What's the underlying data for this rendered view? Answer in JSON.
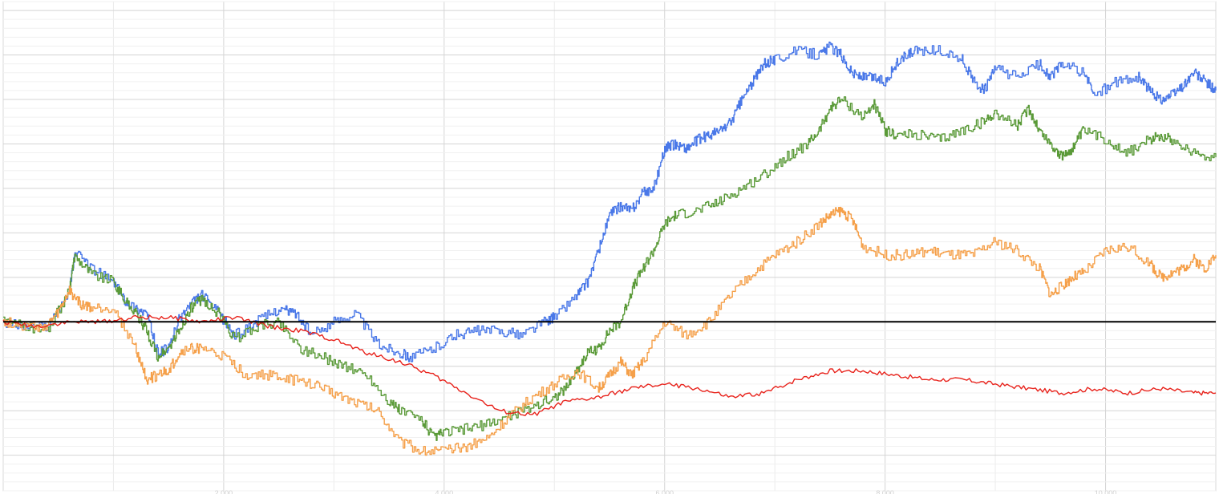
{
  "chart_data": {
    "type": "line",
    "title": "",
    "xlabel": "",
    "ylabel": "",
    "xlim": [
      0,
      11000
    ],
    "ylim": [
      -1.9,
      3.6
    ],
    "grid": true,
    "legend": "none",
    "zero_line_color": "#000000",
    "x_ticks": [
      2000,
      4000,
      6000,
      8000,
      10000
    ],
    "x_tick_labels": [
      "2,000",
      "4,000",
      "6,000",
      "8,000",
      "10,000"
    ],
    "series": [
      {
        "color": "#4a78e8",
        "style": "step",
        "x": [
          0,
          200,
          400,
          600,
          650,
          800,
          1000,
          1100,
          1200,
          1300,
          1400,
          1500,
          1600,
          1700,
          1800,
          1950,
          2100,
          2300,
          2500,
          2650,
          2800,
          3000,
          3200,
          3400,
          3600,
          3700,
          3900,
          4100,
          4300,
          4500,
          4700,
          4900,
          5000,
          5200,
          5300,
          5400,
          5500,
          5600,
          5700,
          5800,
          5900,
          6000,
          6100,
          6200,
          6300,
          6400,
          6500,
          6600,
          6700,
          6800,
          6900,
          7000,
          7200,
          7400,
          7500,
          7600,
          7700,
          7800,
          7900,
          8000,
          8100,
          8200,
          8300,
          8500,
          8700,
          8800,
          8900,
          9000,
          9200,
          9400,
          9500,
          9600,
          9800,
          9900,
          10100,
          10300,
          10400,
          10500,
          10600,
          10700,
          10800,
          10900,
          11000
        ],
        "y": [
          0.0,
          -0.05,
          -0.05,
          0.35,
          0.78,
          0.6,
          0.45,
          0.25,
          0.15,
          0.1,
          -0.35,
          -0.3,
          0.05,
          0.2,
          0.3,
          0.1,
          -0.15,
          0.0,
          0.15,
          0.1,
          -0.15,
          0.0,
          0.1,
          -0.25,
          -0.35,
          -0.4,
          -0.3,
          -0.15,
          -0.1,
          -0.1,
          -0.15,
          0.0,
          0.05,
          0.3,
          0.45,
          0.8,
          1.2,
          1.3,
          1.25,
          1.45,
          1.5,
          1.95,
          2.0,
          1.95,
          2.05,
          2.1,
          2.15,
          2.25,
          2.5,
          2.7,
          2.9,
          2.95,
          3.05,
          3.0,
          3.1,
          3.0,
          2.8,
          2.75,
          2.75,
          2.7,
          2.9,
          3.0,
          3.05,
          3.05,
          2.95,
          2.7,
          2.6,
          2.85,
          2.75,
          2.9,
          2.75,
          2.9,
          2.8,
          2.55,
          2.7,
          2.75,
          2.6,
          2.5,
          2.55,
          2.65,
          2.8,
          2.7,
          2.6
        ]
      },
      {
        "color": "#5a9a38",
        "style": "step",
        "x": [
          0,
          200,
          400,
          600,
          650,
          800,
          1000,
          1100,
          1200,
          1300,
          1400,
          1500,
          1600,
          1700,
          1800,
          1950,
          2100,
          2300,
          2500,
          2700,
          2900,
          3100,
          3300,
          3500,
          3600,
          3800,
          3900,
          4000,
          4200,
          4400,
          4600,
          4800,
          5000,
          5100,
          5200,
          5300,
          5400,
          5500,
          5600,
          5700,
          5800,
          5900,
          6000,
          6100,
          6300,
          6500,
          6700,
          6900,
          7100,
          7300,
          7400,
          7500,
          7600,
          7800,
          7900,
          8000,
          8100,
          8300,
          8500,
          8700,
          8900,
          9000,
          9200,
          9300,
          9400,
          9500,
          9600,
          9700,
          9800,
          10000,
          10200,
          10400,
          10500,
          10600,
          10800,
          11000
        ],
        "y": [
          0.0,
          -0.05,
          -0.1,
          0.35,
          0.75,
          0.55,
          0.45,
          0.25,
          0.1,
          -0.1,
          -0.4,
          -0.3,
          -0.1,
          0.15,
          0.25,
          0.1,
          -0.2,
          -0.05,
          0.0,
          -0.3,
          -0.4,
          -0.5,
          -0.6,
          -0.9,
          -1.0,
          -1.1,
          -1.3,
          -1.25,
          -1.2,
          -1.15,
          -1.05,
          -0.95,
          -0.85,
          -0.75,
          -0.55,
          -0.35,
          -0.3,
          -0.1,
          0.0,
          0.35,
          0.6,
          0.8,
          1.1,
          1.2,
          1.25,
          1.35,
          1.5,
          1.65,
          1.85,
          2.0,
          2.15,
          2.4,
          2.5,
          2.3,
          2.45,
          2.15,
          2.1,
          2.1,
          2.05,
          2.15,
          2.25,
          2.35,
          2.2,
          2.4,
          2.15,
          2.0,
          1.85,
          1.95,
          2.15,
          2.05,
          1.9,
          2.05,
          2.1,
          2.05,
          1.9,
          1.85
        ]
      },
      {
        "color": "#f5a04a",
        "style": "step",
        "x": [
          0,
          200,
          400,
          500,
          600,
          700,
          800,
          1000,
          1200,
          1300,
          1400,
          1500,
          1600,
          1700,
          1800,
          2000,
          2200,
          2400,
          2600,
          2800,
          3000,
          3200,
          3400,
          3600,
          3800,
          4000,
          4200,
          4400,
          4600,
          4800,
          5000,
          5200,
          5400,
          5500,
          5600,
          5700,
          5800,
          6000,
          6200,
          6400,
          6600,
          6800,
          7000,
          7200,
          7400,
          7500,
          7600,
          7700,
          7800,
          8000,
          8200,
          8400,
          8600,
          8800,
          9000,
          9200,
          9400,
          9500,
          9600,
          9700,
          9800,
          10000,
          10200,
          10400,
          10500,
          10600,
          10700,
          10800,
          10900,
          11000
        ],
        "y": [
          0.0,
          -0.05,
          -0.05,
          0.1,
          0.35,
          0.2,
          0.15,
          0.15,
          -0.3,
          -0.65,
          -0.6,
          -0.55,
          -0.35,
          -0.3,
          -0.3,
          -0.4,
          -0.6,
          -0.6,
          -0.65,
          -0.7,
          -0.8,
          -0.9,
          -1.0,
          -1.35,
          -1.45,
          -1.45,
          -1.4,
          -1.3,
          -1.05,
          -0.85,
          -0.7,
          -0.55,
          -0.75,
          -0.6,
          -0.45,
          -0.6,
          -0.45,
          0.0,
          -0.15,
          0.0,
          0.3,
          0.55,
          0.75,
          0.9,
          1.1,
          1.2,
          1.25,
          1.15,
          0.85,
          0.75,
          0.75,
          0.8,
          0.75,
          0.75,
          0.9,
          0.8,
          0.6,
          0.3,
          0.4,
          0.5,
          0.55,
          0.8,
          0.85,
          0.65,
          0.5,
          0.55,
          0.6,
          0.7,
          0.6,
          0.75
        ]
      },
      {
        "color": "#e8231c",
        "style": "line",
        "x": [
          0,
          300,
          600,
          900,
          1200,
          1500,
          1800,
          2100,
          2400,
          2700,
          3000,
          3300,
          3600,
          3900,
          4200,
          4500,
          4800,
          5100,
          5400,
          5700,
          6000,
          6300,
          6600,
          6900,
          7200,
          7500,
          7800,
          8100,
          8400,
          8700,
          9000,
          9300,
          9600,
          9900,
          10200,
          10500,
          10800,
          11000
        ],
        "y": [
          0.0,
          -0.05,
          0.0,
          0.0,
          0.05,
          0.05,
          0.0,
          0.05,
          -0.05,
          -0.1,
          -0.2,
          -0.35,
          -0.45,
          -0.6,
          -0.8,
          -1.0,
          -1.05,
          -0.9,
          -0.85,
          -0.75,
          -0.7,
          -0.75,
          -0.85,
          -0.8,
          -0.65,
          -0.55,
          -0.55,
          -0.6,
          -0.65,
          -0.65,
          -0.7,
          -0.75,
          -0.8,
          -0.75,
          -0.8,
          -0.75,
          -0.8,
          -0.8
        ]
      }
    ]
  }
}
